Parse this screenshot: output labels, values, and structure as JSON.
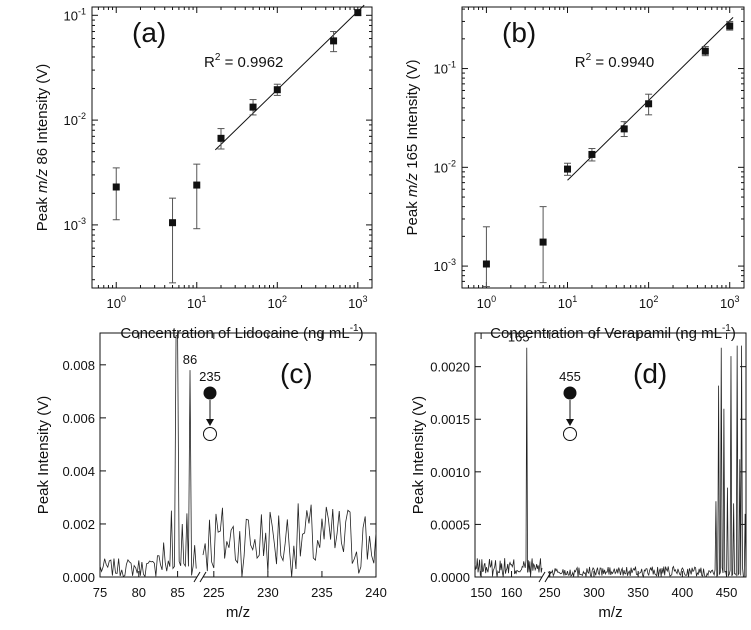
{
  "chart_data": [
    {
      "type": "scatter",
      "panel": "(a)",
      "xscale": "log",
      "yscale": "log",
      "xlim": [
        0.5,
        1500
      ],
      "ylim": [
        0.00025,
        0.12
      ],
      "xticks": [
        1,
        10,
        100,
        1000
      ],
      "xtick_labels": [
        [
          "10",
          "0"
        ],
        [
          "10",
          "1"
        ],
        [
          "10",
          "2"
        ],
        [
          "10",
          "3"
        ]
      ],
      "yticks": [
        0.001,
        0.01,
        0.1
      ],
      "ytick_labels": [
        [
          "10",
          "-3"
        ],
        [
          "10",
          "-2"
        ],
        [
          "10",
          "-1"
        ]
      ],
      "xlabel": {
        "pre": "Concentration of Lidocaine (ng mL",
        "sup": "-1",
        "post": ")"
      },
      "ylabel": {
        "pre": "Peak ",
        "ital": "m/z",
        "post": " 86 Intensity (V)"
      },
      "annotation": {
        "pre": "R",
        "sup": "2",
        "post": " = 0.9962"
      },
      "fit": {
        "x": [
          17,
          1200
        ],
        "y": [
          0.0052,
          0.125
        ]
      },
      "points": [
        {
          "x": 1,
          "y": 0.0023,
          "lo": 0.00112,
          "hi": 0.0035
        },
        {
          "x": 5,
          "y": 0.00105,
          "lo": 0.00028,
          "hi": 0.0018
        },
        {
          "x": 10,
          "y": 0.0024,
          "lo": 0.00092,
          "hi": 0.0038
        },
        {
          "x": 20,
          "y": 0.0067,
          "lo": 0.0053,
          "hi": 0.0083
        },
        {
          "x": 50,
          "y": 0.0133,
          "lo": 0.0112,
          "hi": 0.0157
        },
        {
          "x": 100,
          "y": 0.0195,
          "lo": 0.0172,
          "hi": 0.022
        },
        {
          "x": 500,
          "y": 0.057,
          "lo": 0.045,
          "hi": 0.07
        },
        {
          "x": 1000,
          "y": 0.106,
          "lo": 0.1,
          "hi": 0.112
        }
      ]
    },
    {
      "type": "scatter",
      "panel": "(b)",
      "xscale": "log",
      "yscale": "log",
      "xlim": [
        0.5,
        1500
      ],
      "ylim": [
        0.0006,
        0.42
      ],
      "xticks": [
        1,
        10,
        100,
        1000
      ],
      "xtick_labels": [
        [
          "10",
          "0"
        ],
        [
          "10",
          "1"
        ],
        [
          "10",
          "2"
        ],
        [
          "10",
          "3"
        ]
      ],
      "yticks": [
        0.001,
        0.01,
        0.1
      ],
      "ytick_labels": [
        [
          "10",
          "-3"
        ],
        [
          "10",
          "-2"
        ],
        [
          "10",
          "-1"
        ]
      ],
      "xlabel": {
        "pre": "Concentration of Verapamil (ng mL",
        "sup": "-1",
        "post": ")"
      },
      "ylabel": {
        "pre": "Peak ",
        "ital": "m/z",
        "post": " 165 Intensity (V)"
      },
      "annotation": {
        "pre": "R",
        "sup": "2",
        "post": " = 0.9940"
      },
      "fit": {
        "x": [
          10,
          1100
        ],
        "y": [
          0.0074,
          0.33
        ]
      },
      "points": [
        {
          "x": 1,
          "y": 0.00105,
          "lo": 0.00062,
          "hi": 0.0025
        },
        {
          "x": 5,
          "y": 0.00175,
          "lo": 0.00068,
          "hi": 0.004
        },
        {
          "x": 10,
          "y": 0.0096,
          "lo": 0.0083,
          "hi": 0.011
        },
        {
          "x": 20,
          "y": 0.0135,
          "lo": 0.0116,
          "hi": 0.0155
        },
        {
          "x": 50,
          "y": 0.0245,
          "lo": 0.0205,
          "hi": 0.029
        },
        {
          "x": 100,
          "y": 0.044,
          "lo": 0.034,
          "hi": 0.055
        },
        {
          "x": 500,
          "y": 0.15,
          "lo": 0.135,
          "hi": 0.167
        },
        {
          "x": 1000,
          "y": 0.27,
          "lo": 0.245,
          "hi": 0.3
        }
      ]
    },
    {
      "type": "line",
      "panel": "(c)",
      "xlabel": "m/z",
      "ylabel": "Peak Intensity (V)",
      "ylim": [
        0,
        0.0092
      ],
      "yticks": [
        0,
        0.002,
        0.004,
        0.006,
        0.008
      ],
      "ytick_labels": [
        "0.000",
        "0.002",
        "0.004",
        "0.006",
        "0.008"
      ],
      "segments": [
        {
          "xlim": [
            75,
            87.5
          ],
          "xticks": [
            75,
            80,
            85
          ],
          "xtick_labels": [
            "75",
            "80",
            "85"
          ]
        },
        {
          "xlim": [
            224,
            240
          ],
          "xticks": [
            225,
            230,
            235,
            240
          ],
          "xtick_labels": [
            "225",
            "230",
            "235",
            "240"
          ]
        }
      ],
      "peaks": [
        {
          "x": 84.9,
          "y": 0.0091
        },
        {
          "x": 86.6,
          "y": 0.0078
        },
        {
          "x": 84.2,
          "y": 0.0025
        },
        {
          "x": 85.6,
          "y": 0.002
        },
        {
          "x": 86.2,
          "y": 0.0024
        },
        {
          "x": 87.2,
          "y": 0.0012
        },
        {
          "x": 83.2,
          "y": 0.0013
        },
        {
          "x": 82.5,
          "y": 0.0008
        }
      ],
      "peak_labels": [
        {
          "x": 86.6,
          "y": 0.0078,
          "text": "86"
        }
      ],
      "ion": {
        "precursor": "235"
      }
    },
    {
      "type": "line",
      "panel": "(d)",
      "xlabel": "m/z",
      "ylabel": "Peak Intensity (V)",
      "ylim": [
        0,
        0.00232
      ],
      "yticks": [
        0,
        0.0005,
        0.001,
        0.0015,
        0.002
      ],
      "ytick_labels": [
        "0.0000",
        "0.0005",
        "0.0010",
        "0.0015",
        "0.0020"
      ],
      "segments": [
        {
          "xlim": [
            148,
            170
          ],
          "xticks": [
            150,
            160
          ],
          "xtick_labels": [
            "150",
            "160"
          ]
        },
        {
          "xlim": [
            248,
            472
          ],
          "xticks": [
            250,
            300,
            350,
            400,
            450
          ],
          "xtick_labels": [
            "250",
            "300",
            "350",
            "400",
            "450"
          ]
        }
      ],
      "peaks": [
        {
          "x": 165,
          "y": 0.00218
        },
        {
          "x": 438,
          "y": 0.00072
        },
        {
          "x": 441,
          "y": 0.00182
        },
        {
          "x": 444,
          "y": 0.00218
        },
        {
          "x": 447,
          "y": 0.0016
        },
        {
          "x": 451,
          "y": 0.00085
        },
        {
          "x": 455,
          "y": 0.0021
        },
        {
          "x": 458,
          "y": 0.0007
        },
        {
          "x": 462,
          "y": 0.0022
        },
        {
          "x": 465,
          "y": 0.00112
        },
        {
          "x": 467,
          "y": 0.0022
        },
        {
          "x": 471,
          "y": 0.0006
        }
      ],
      "peak_labels": [
        {
          "x": 165,
          "y": 0.00218,
          "text": "165"
        }
      ],
      "ion": {
        "precursor": "455"
      }
    }
  ]
}
